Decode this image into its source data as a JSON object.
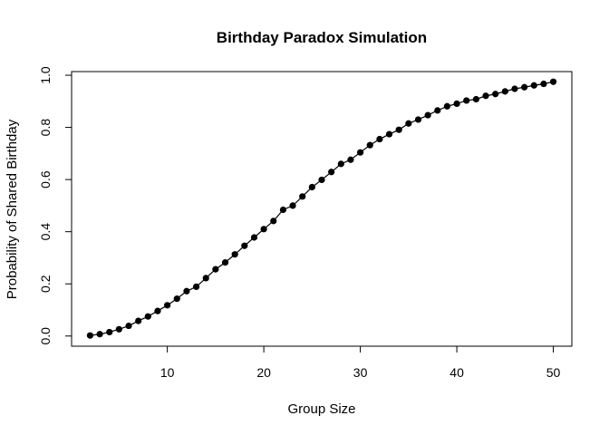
{
  "chart_data": {
    "type": "line",
    "title": "Birthday Paradox Simulation",
    "xlabel": "Group Size",
    "ylabel": "Probability of Shared Birthday",
    "xlim": [
      0.08,
      51.92
    ],
    "ylim": [
      -0.039,
      1.014
    ],
    "x_ticks": [
      10,
      20,
      30,
      40,
      50
    ],
    "y_ticks": [
      0.0,
      0.2,
      0.4,
      0.6,
      0.8,
      1.0
    ],
    "x_tick_labels": [
      "10",
      "20",
      "30",
      "40",
      "50"
    ],
    "y_tick_labels": [
      "0.0",
      "0.2",
      "0.4",
      "0.6",
      "0.8",
      "1.0"
    ],
    "grid": false,
    "line_color": "#000000",
    "marker": "filled-circle",
    "x": [
      2,
      3,
      4,
      5,
      6,
      7,
      8,
      9,
      10,
      11,
      12,
      13,
      14,
      15,
      16,
      17,
      18,
      19,
      20,
      21,
      22,
      23,
      24,
      25,
      26,
      27,
      28,
      29,
      30,
      31,
      32,
      33,
      34,
      35,
      36,
      37,
      38,
      39,
      40,
      41,
      42,
      43,
      44,
      45,
      46,
      47,
      48,
      49,
      50
    ],
    "y": [
      0.002,
      0.007,
      0.015,
      0.026,
      0.039,
      0.058,
      0.075,
      0.096,
      0.118,
      0.143,
      0.172,
      0.189,
      0.222,
      0.256,
      0.282,
      0.313,
      0.346,
      0.378,
      0.41,
      0.441,
      0.484,
      0.5,
      0.535,
      0.571,
      0.599,
      0.629,
      0.66,
      0.676,
      0.704,
      0.732,
      0.755,
      0.774,
      0.791,
      0.815,
      0.83,
      0.847,
      0.865,
      0.881,
      0.891,
      0.903,
      0.908,
      0.921,
      0.928,
      0.938,
      0.948,
      0.954,
      0.961,
      0.967,
      0.975
    ]
  }
}
